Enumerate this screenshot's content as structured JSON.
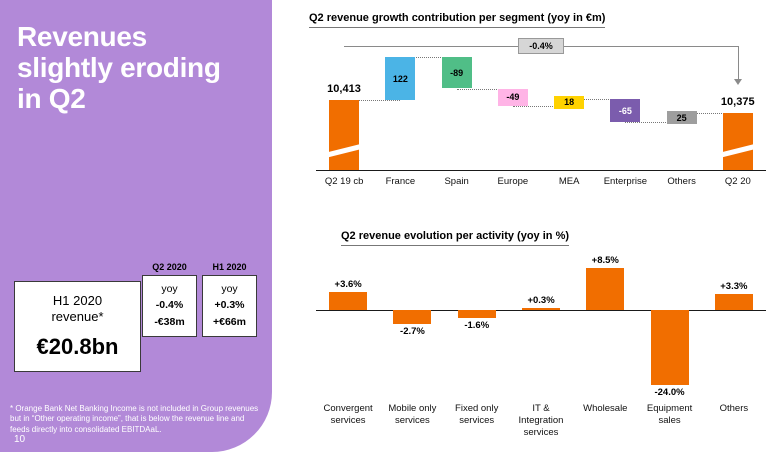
{
  "colors": {
    "panel_purple": "#b289d8",
    "brand_orange": "#f16e00",
    "axis_black": "#1a1a1a"
  },
  "left_panel": {
    "title_lines": [
      "Revenues",
      "slightly eroding",
      "in Q2"
    ],
    "revenue_box": {
      "label_line1": "H1 2020",
      "label_line2": "revenue*",
      "value": "€20.8bn"
    },
    "yoy_boxes": [
      {
        "header": "Q2 2020",
        "rows": [
          "yoy",
          "-0.4%",
          "-€38m"
        ]
      },
      {
        "header": "H1 2020",
        "rows": [
          "yoy",
          "+0.3%",
          "+€66m"
        ]
      }
    ],
    "footnote": "* Orange Bank Net Banking Income is not included in Group revenues but in “Other operating income”, that is below the revenue line and feeds directly into consolidated EBITDAaL.",
    "page_number": "10"
  },
  "chart_data": [
    {
      "type": "waterfall",
      "title": "Q2 revenue growth contribution per segment (yoy in €m)",
      "annotation": "-0.4%",
      "start": {
        "category": "Q2 19 cb",
        "value": 10413,
        "label": "10,413",
        "color": "#f16e00"
      },
      "deltas": [
        {
          "category": "France",
          "value": 122,
          "label": "122",
          "color": "#4bb4e6",
          "label_color": "#000000"
        },
        {
          "category": "Spain",
          "value": -89,
          "label": "-89",
          "color": "#50be87",
          "label_color": "#000000"
        },
        {
          "category": "Europe",
          "value": -49,
          "label": "-49",
          "color": "#ffb4e6",
          "label_color": "#000000"
        },
        {
          "category": "MEA",
          "value": 18,
          "label": "18",
          "color": "#ffd200",
          "label_color": "#000000"
        },
        {
          "category": "Enterprise",
          "value": -65,
          "label": "-65",
          "color": "#7b5cad",
          "label_color": "#ffffff"
        },
        {
          "category": "Others",
          "value": 25,
          "label": "25",
          "color": "#9e9e9e",
          "label_color": "#000000"
        }
      ],
      "end": {
        "category": "Q2 20",
        "value": 10375,
        "label": "10,375",
        "color": "#f16e00"
      },
      "axis_broken": true,
      "legend": "none"
    },
    {
      "type": "bar",
      "title": "Q2 revenue evolution per activity (yoy in %)",
      "bar_color": "#f16e00",
      "bars": [
        {
          "category": "Convergent services",
          "value": 3.6,
          "label": "+3.6%"
        },
        {
          "category": "Mobile only services",
          "value": -2.7,
          "label": "-2.7%"
        },
        {
          "category": "Fixed only services",
          "value": -1.6,
          "label": "-1.6%"
        },
        {
          "category": "IT & Integration services",
          "value": 0.3,
          "label": "+0.3%"
        },
        {
          "category": "Wholesale",
          "value": 8.5,
          "label": "+8.5%"
        },
        {
          "category": "Equipment sales",
          "value": -24.0,
          "label": "-24.0%"
        },
        {
          "category": "Others",
          "value": 3.3,
          "label": "+3.3%"
        }
      ],
      "legend": "none"
    }
  ]
}
